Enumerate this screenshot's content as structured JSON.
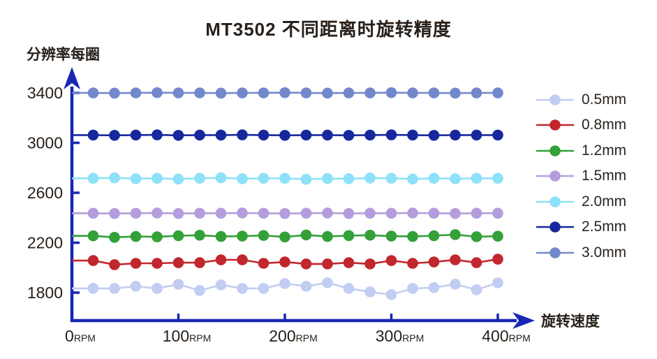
{
  "chart_data": {
    "type": "line",
    "title": "MT3502 不同距离时旋转精度",
    "xlabel": "旋转速度",
    "ylabel": "分辨率每圈",
    "x_unit": "RPM",
    "xlim": [
      0,
      400
    ],
    "ylim": [
      1700,
      3500
    ],
    "grid": false,
    "legend_position": "right",
    "axis_color": "#1826b3",
    "text_color": "#28201a",
    "y_ticks": [
      3400,
      3000,
      2600,
      2200,
      1800
    ],
    "x_ticks": [
      0,
      100,
      200,
      300,
      400
    ],
    "x": [
      20,
      40,
      60,
      80,
      100,
      120,
      140,
      160,
      180,
      200,
      220,
      240,
      260,
      280,
      300,
      320,
      340,
      360,
      380,
      400
    ],
    "series": [
      {
        "name": "0.5mm",
        "color": "#c2cdf2",
        "values": [
          1834,
          1834,
          1851,
          1834,
          1867,
          1817,
          1862,
          1834,
          1834,
          1873,
          1851,
          1879,
          1834,
          1806,
          1784,
          1834,
          1840,
          1868,
          1823,
          1879
        ]
      },
      {
        "name": "0.8mm",
        "color": "#c1272d",
        "values": [
          2057,
          2024,
          2035,
          2035,
          2040,
          2040,
          2063,
          2063,
          2035,
          2046,
          2030,
          2030,
          2040,
          2030,
          2057,
          2035,
          2046,
          2063,
          2040,
          2068
        ]
      },
      {
        "name": "1.2mm",
        "color": "#33a038",
        "values": [
          2255,
          2243,
          2250,
          2247,
          2256,
          2260,
          2250,
          2253,
          2258,
          2246,
          2262,
          2250,
          2257,
          2260,
          2253,
          2250,
          2256,
          2265,
          2248,
          2252
        ]
      },
      {
        "name": "1.5mm",
        "color": "#b59ddc",
        "values": [
          2436,
          2434,
          2436,
          2438,
          2434,
          2436,
          2436,
          2438,
          2436,
          2434,
          2436,
          2438,
          2434,
          2436,
          2436,
          2438,
          2436,
          2434,
          2436,
          2436
        ]
      },
      {
        "name": "2.0mm",
        "color": "#8de1f8",
        "values": [
          2716,
          2720,
          2712,
          2716,
          2710,
          2716,
          2720,
          2712,
          2716,
          2716,
          2708,
          2714,
          2712,
          2718,
          2716,
          2710,
          2716,
          2712,
          2716,
          2716
        ]
      },
      {
        "name": "2.5mm",
        "color": "#17289e",
        "values": [
          3062,
          3060,
          3062,
          3064,
          3060,
          3062,
          3062,
          3064,
          3062,
          3060,
          3062,
          3062,
          3060,
          3062,
          3064,
          3062,
          3060,
          3062,
          3062,
          3062
        ]
      },
      {
        "name": "3.0mm",
        "color": "#7387cd",
        "values": [
          3400,
          3398,
          3400,
          3402,
          3400,
          3400,
          3398,
          3400,
          3400,
          3402,
          3400,
          3398,
          3400,
          3400,
          3402,
          3400,
          3400,
          3398,
          3400,
          3400
        ]
      }
    ]
  }
}
